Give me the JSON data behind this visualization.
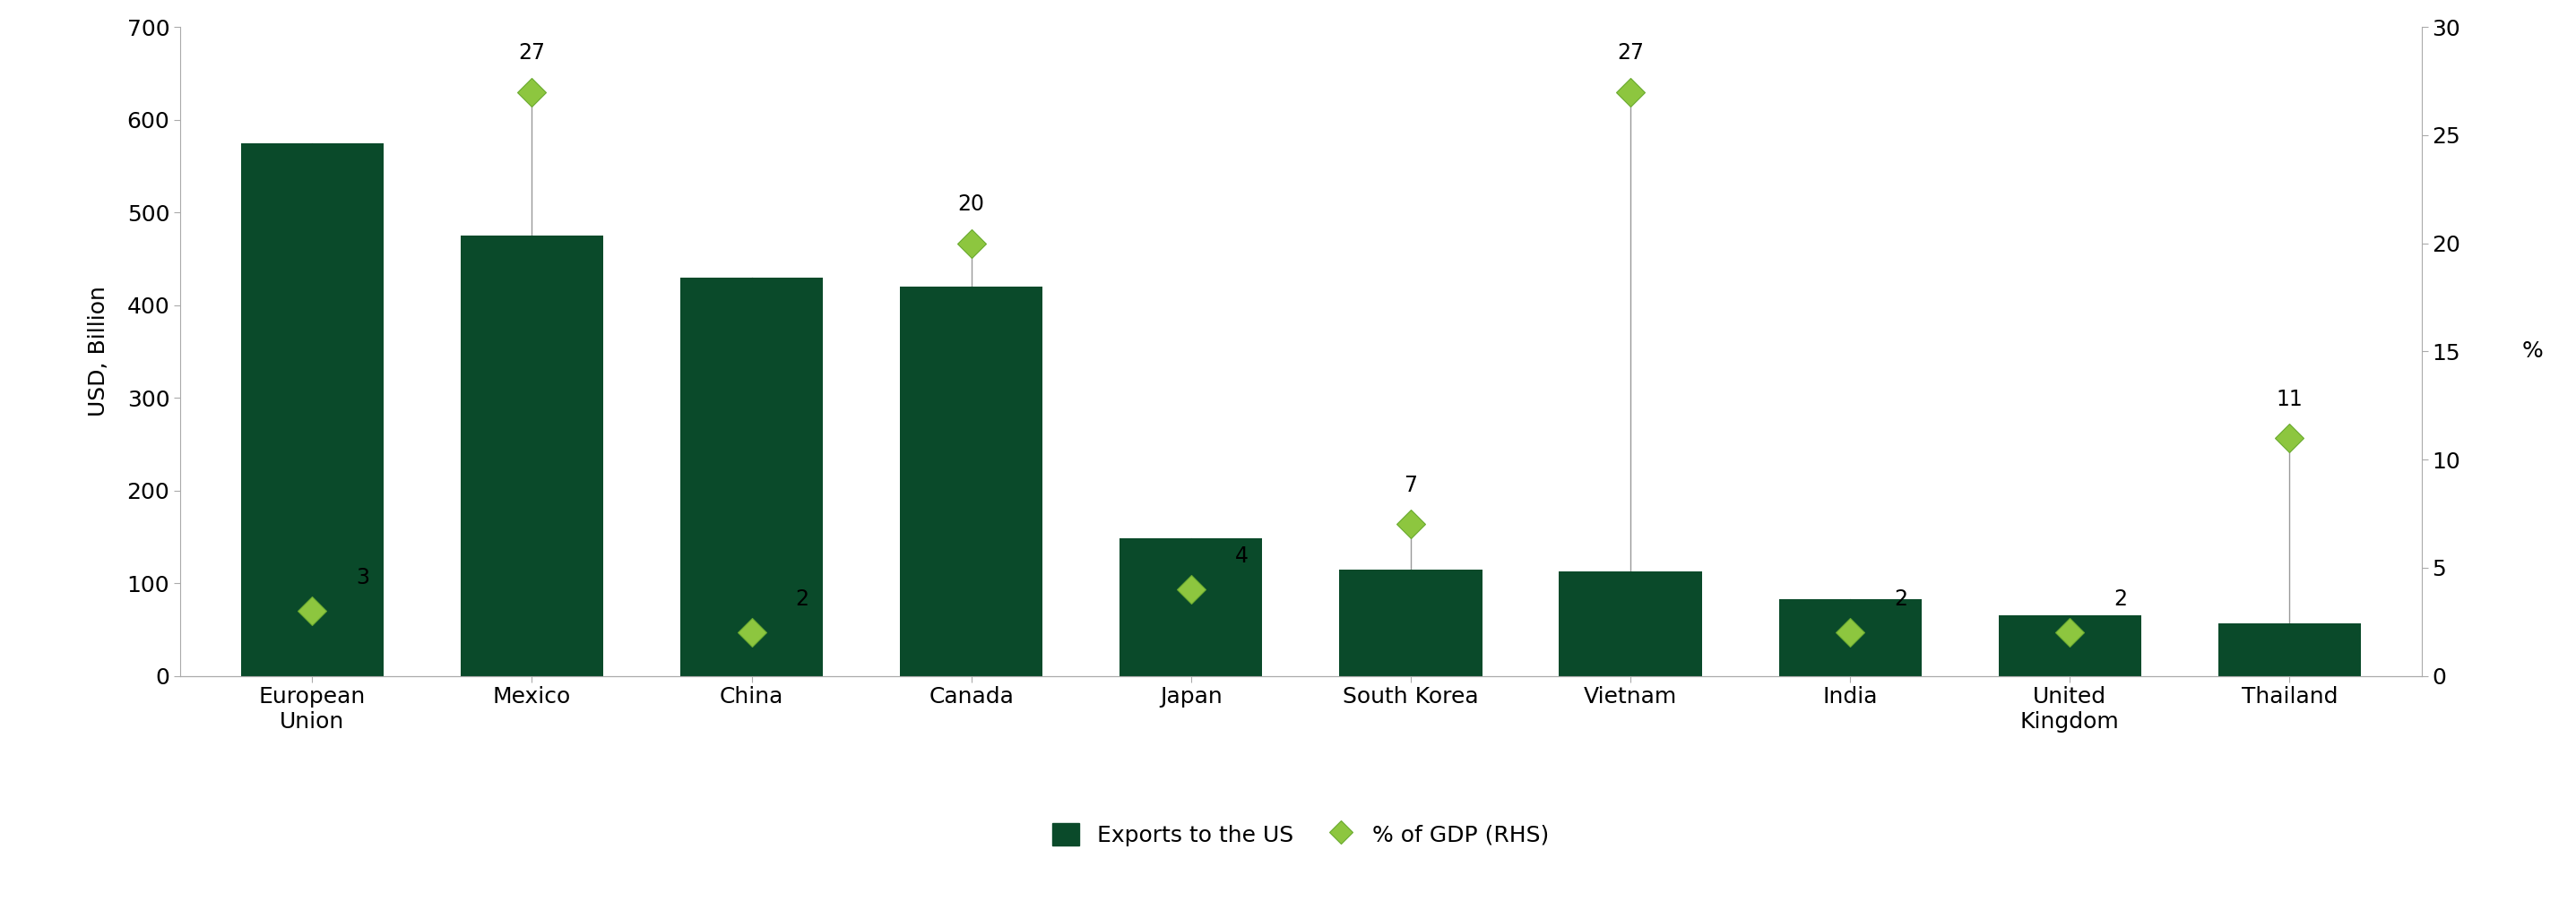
{
  "categories": [
    "European\nUnion",
    "Mexico",
    "China",
    "Canada",
    "Japan",
    "South Korea",
    "Vietnam",
    "India",
    "United\nKingdom",
    "Thailand"
  ],
  "exports_usd_billion": [
    575,
    475,
    430,
    420,
    148,
    115,
    113,
    83,
    65,
    57
  ],
  "pct_gdp": [
    3,
    27,
    2,
    20,
    4,
    7,
    27,
    2,
    2,
    11
  ],
  "bar_color": "#0a4a2a",
  "diamond_color": "#8dc63f",
  "diamond_color_dark": "#6aaa30",
  "ylabel_left": "USD, Billion",
  "ylabel_right": "%",
  "ylim_left": [
    0,
    700
  ],
  "ylim_right": [
    0,
    30
  ],
  "yticks_left": [
    0,
    100,
    200,
    300,
    400,
    500,
    600,
    700
  ],
  "yticks_right": [
    0,
    5,
    10,
    15,
    20,
    25,
    30
  ],
  "legend_bar_label": "Exports to the US",
  "legend_diamond_label": "% of GDP (RHS)",
  "background_color": "#ffffff",
  "label_fontsize": 18,
  "tick_fontsize": 18,
  "annotation_fontsize": 17,
  "connector_color": "#999999",
  "spine_color": "#aaaaaa",
  "tick_color": "#aaaaaa"
}
